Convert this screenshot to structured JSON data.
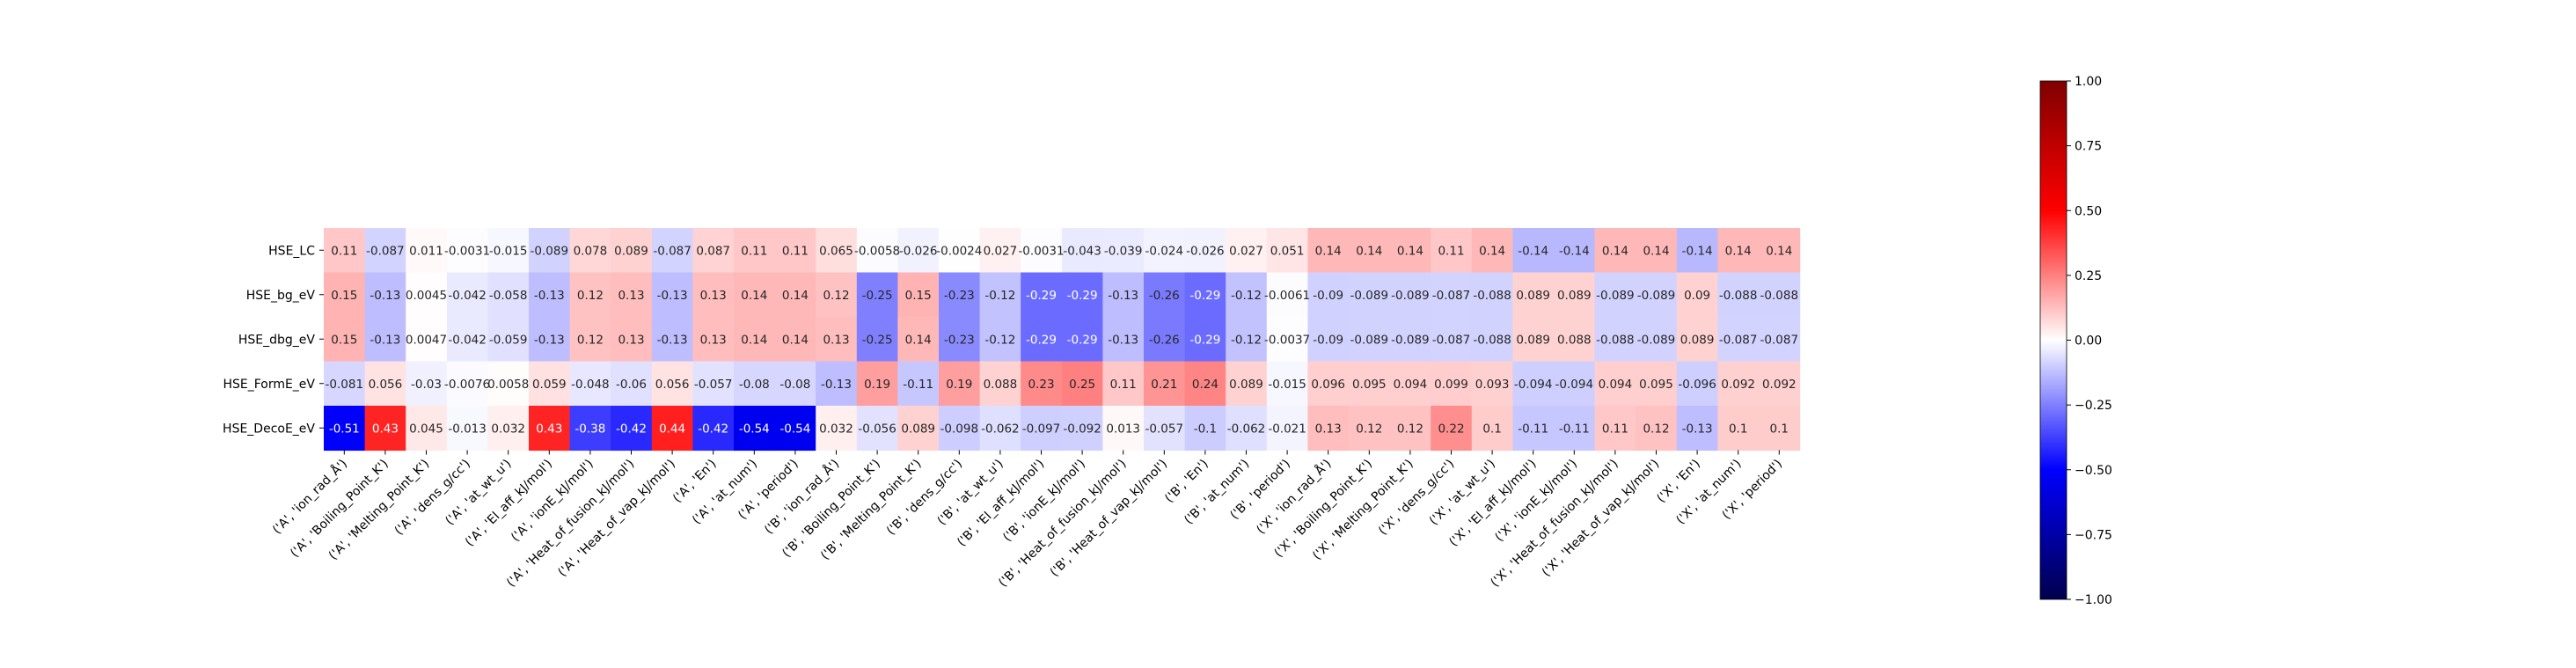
{
  "chart_data": {
    "type": "heatmap",
    "title": "",
    "xlabel": "",
    "ylabel": "",
    "rows": [
      "HSE_LC",
      "HSE_bg_eV",
      "HSE_dbg_eV",
      "HSE_FormE_eV",
      "HSE_DecoE_eV"
    ],
    "columns": [
      "('A', 'ion_rad_Å')",
      "('A', 'Boiling_Point_K')",
      "('A', 'Melting_Point_K')",
      "('A', 'dens_g/cc')",
      "('A', 'at_wt_u')",
      "('A', 'El_aff_kJ/mol')",
      "('A', 'ionE_kJ/mol')",
      "('A', 'Heat_of_fusion_kJ/mol')",
      "('A', 'Heat_of_vap_kJ/mol')",
      "('A', 'En')",
      "('A', 'at_num')",
      "('A', 'period')",
      "('B', 'ion_rad_Å')",
      "('B', 'Boiling_Point_K')",
      "('B', 'Melting_Point_K')",
      "('B', 'dens_g/cc')",
      "('B', 'at_wt_u')",
      "('B', 'El_aff_kJ/mol')",
      "('B', 'ionE_kJ/mol')",
      "('B', 'Heat_of_fusion_kJ/mol')",
      "('B', 'Heat_of_vap_kJ/mol')",
      "('B', 'En')",
      "('B', 'at_num')",
      "('B', 'period')",
      "('X', 'ion_rad_Å')",
      "('X', 'Boiling_Point_K')",
      "('X', 'Melting_Point_K')",
      "('X', 'dens_g/cc')",
      "('X', 'at_wt_u')",
      "('X', 'El_aff_kJ/mol')",
      "('X', 'ionE_kJ/mol')",
      "('X', 'Heat_of_fusion_kJ/mol')",
      "('X', 'Heat_of_vap_kJ/mol')",
      "('X', 'En')",
      "('X', 'at_num')",
      "('X', 'period')"
    ],
    "values": [
      [
        0.11,
        -0.087,
        0.011,
        -0.0031,
        -0.015,
        -0.089,
        0.078,
        0.089,
        -0.087,
        0.087,
        0.11,
        0.11,
        0.065,
        -0.0058,
        -0.026,
        -0.0024,
        0.027,
        -0.0031,
        -0.043,
        -0.039,
        -0.024,
        -0.026,
        0.027,
        0.051,
        0.14,
        0.14,
        0.14,
        0.11,
        0.14,
        -0.14,
        -0.14,
        0.14,
        0.14,
        -0.14,
        0.14,
        0.14
      ],
      [
        0.15,
        -0.13,
        0.0045,
        -0.042,
        -0.058,
        -0.13,
        0.12,
        0.13,
        -0.13,
        0.13,
        0.14,
        0.14,
        0.12,
        -0.25,
        0.15,
        -0.23,
        -0.12,
        -0.29,
        -0.29,
        -0.13,
        -0.26,
        -0.29,
        -0.12,
        -0.0061,
        -0.09,
        -0.089,
        -0.089,
        -0.087,
        -0.088,
        0.089,
        0.089,
        -0.089,
        -0.089,
        0.09,
        -0.088,
        -0.088
      ],
      [
        0.15,
        -0.13,
        0.0047,
        -0.042,
        -0.059,
        -0.13,
        0.12,
        0.13,
        -0.13,
        0.13,
        0.14,
        0.14,
        0.13,
        -0.25,
        0.14,
        -0.23,
        -0.12,
        -0.29,
        -0.29,
        -0.13,
        -0.26,
        -0.29,
        -0.12,
        -0.0037,
        -0.09,
        -0.089,
        -0.089,
        -0.087,
        -0.088,
        0.089,
        0.088,
        -0.088,
        -0.089,
        0.089,
        -0.087,
        -0.087
      ],
      [
        -0.081,
        0.056,
        -0.03,
        -0.0076,
        0.0058,
        0.059,
        -0.048,
        -0.06,
        0.056,
        -0.057,
        -0.08,
        -0.08,
        -0.13,
        0.19,
        -0.11,
        0.19,
        0.088,
        0.23,
        0.25,
        0.11,
        0.21,
        0.24,
        0.089,
        -0.015,
        0.096,
        0.095,
        0.094,
        0.099,
        0.093,
        -0.094,
        -0.094,
        0.094,
        0.095,
        -0.096,
        0.092,
        0.092
      ],
      [
        -0.51,
        0.43,
        0.045,
        -0.013,
        0.032,
        0.43,
        -0.38,
        -0.42,
        0.44,
        -0.42,
        -0.54,
        -0.54,
        0.032,
        -0.056,
        0.089,
        -0.098,
        -0.062,
        -0.097,
        -0.092,
        0.013,
        -0.057,
        -0.1,
        -0.062,
        -0.021,
        0.13,
        0.12,
        0.12,
        0.22,
        0.1,
        -0.11,
        -0.11,
        0.11,
        0.12,
        -0.13,
        0.1,
        0.1
      ]
    ],
    "value_labels": [
      [
        "0.11",
        "-0.087",
        "0.011",
        "-0.0031",
        "-0.015",
        "-0.089",
        "0.078",
        "0.089",
        "-0.087",
        "0.087",
        "0.11",
        "0.11",
        "0.065",
        "-0.0058",
        "-0.026",
        "-0.0024",
        "0.027",
        "-0.0031",
        "-0.043",
        "-0.039",
        "-0.024",
        "-0.026",
        "0.027",
        "0.051",
        "0.14",
        "0.14",
        "0.14",
        "0.11",
        "0.14",
        "-0.14",
        "-0.14",
        "0.14",
        "0.14",
        "-0.14",
        "0.14",
        "0.14"
      ],
      [
        "0.15",
        "-0.13",
        "0.0045",
        "-0.042",
        "-0.058",
        "-0.13",
        "0.12",
        "0.13",
        "-0.13",
        "0.13",
        "0.14",
        "0.14",
        "0.12",
        "-0.25",
        "0.15",
        "-0.23",
        "-0.12",
        "-0.29",
        "-0.29",
        "-0.13",
        "-0.26",
        "-0.29",
        "-0.12",
        "-0.0061",
        "-0.09",
        "-0.089",
        "-0.089",
        "-0.087",
        "-0.088",
        "0.089",
        "0.089",
        "-0.089",
        "-0.089",
        "0.09",
        "-0.088",
        "-0.088"
      ],
      [
        "0.15",
        "-0.13",
        "0.0047",
        "-0.042",
        "-0.059",
        "-0.13",
        "0.12",
        "0.13",
        "-0.13",
        "0.13",
        "0.14",
        "0.14",
        "0.13",
        "-0.25",
        "0.14",
        "-0.23",
        "-0.12",
        "-0.29",
        "-0.29",
        "-0.13",
        "-0.26",
        "-0.29",
        "-0.12",
        "-0.0037",
        "-0.09",
        "-0.089",
        "-0.089",
        "-0.087",
        "-0.088",
        "0.089",
        "0.088",
        "-0.088",
        "-0.089",
        "0.089",
        "-0.087",
        "-0.087"
      ],
      [
        "-0.081",
        "0.056",
        "-0.03",
        "-0.0076",
        "0.0058",
        "0.059",
        "-0.048",
        "-0.06",
        "0.056",
        "-0.057",
        "-0.08",
        "-0.08",
        "-0.13",
        "0.19",
        "-0.11",
        "0.19",
        "0.088",
        "0.23",
        "0.25",
        "0.11",
        "0.21",
        "0.24",
        "0.089",
        "-0.015",
        "0.096",
        "0.095",
        "0.094",
        "0.099",
        "0.093",
        "-0.094",
        "-0.094",
        "0.094",
        "0.095",
        "-0.096",
        "0.092",
        "0.092"
      ],
      [
        "-0.51",
        "0.43",
        "0.045",
        "-0.013",
        "0.032",
        "0.43",
        "-0.38",
        "-0.42",
        "0.44",
        "-0.42",
        "-0.54",
        "-0.54",
        "0.032",
        "-0.056",
        "0.089",
        "-0.098",
        "-0.062",
        "-0.097",
        "-0.092",
        "0.013",
        "-0.057",
        "-0.1",
        "-0.062",
        "-0.021",
        "0.13",
        "0.12",
        "0.12",
        "0.22",
        "0.1",
        "-0.11",
        "-0.11",
        "0.11",
        "0.12",
        "-0.13",
        "0.1",
        "0.1"
      ]
    ],
    "colorbar": {
      "colormap": "seismic",
      "range": [
        -1.0,
        1.0
      ],
      "ticks": [
        1.0,
        0.75,
        0.5,
        0.25,
        0.0,
        -0.25,
        -0.5,
        -0.75,
        -1.0
      ],
      "tick_labels": [
        "1.00",
        "0.75",
        "0.50",
        "0.25",
        "0.00",
        "−0.25",
        "−0.50",
        "−0.75",
        "−1.00"
      ],
      "colors": [
        "#00004c",
        "#0000ff",
        "#ffffff",
        "#ff0000",
        "#7f0000"
      ]
    },
    "annotations": "cell values printed in each cell",
    "grid": false,
    "legend": "colorbar at right"
  }
}
